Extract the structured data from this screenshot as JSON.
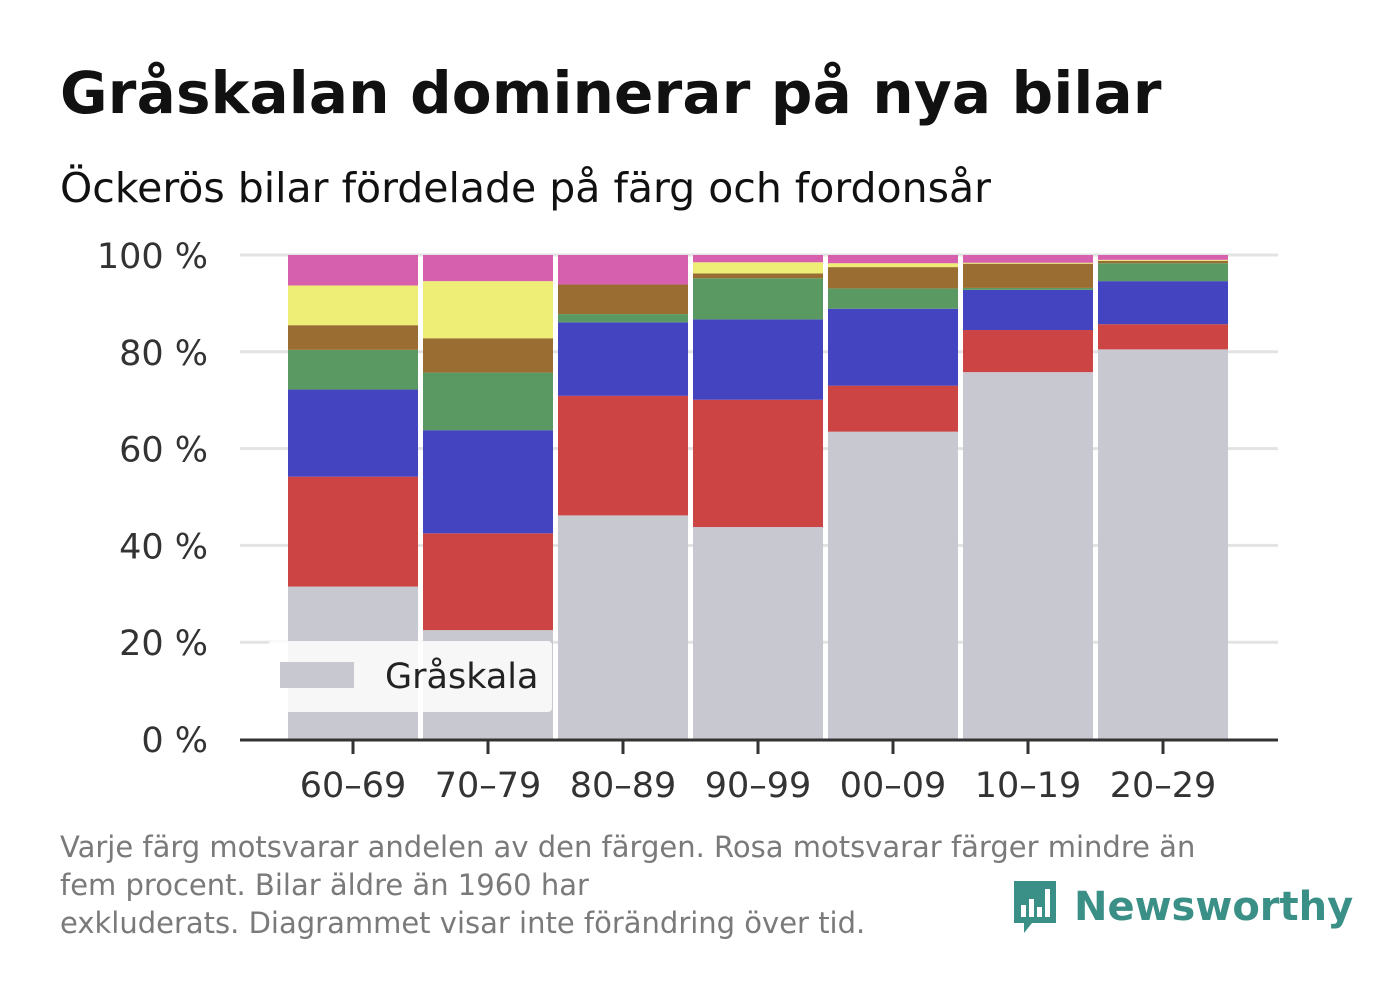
{
  "title": "Gråskalan dominerar på nya bilar",
  "subtitle": "Öckerös bilar fördelade på färg och fordonsår",
  "footnote": {
    "line1": "Varje färg motsvarar andelen av den färgen. Rosa motsvarar färger mindre än",
    "line2": "fem procent. Bilar äldre än 1960 har",
    "line3": "exkluderats. Diagrammet visar inte förändring över tid."
  },
  "brand": {
    "name": "Newsworthy",
    "color": "#3a8f86"
  },
  "legend": {
    "label": "Gråskala"
  },
  "chart_data": {
    "type": "bar",
    "stacked": true,
    "categories": [
      "60–69",
      "70–79",
      "80–89",
      "90–99",
      "00–09",
      "10–19",
      "20–29"
    ],
    "ylim": [
      0,
      100
    ],
    "yticks": [
      0,
      20,
      40,
      60,
      80,
      100
    ],
    "ytick_labels": [
      "0 %",
      "20 %",
      "40 %",
      "60 %",
      "80 %",
      "100 %"
    ],
    "grid": true,
    "legend_position": "bottom-left",
    "series": [
      {
        "name": "Gråskala",
        "color": "#c8c8d0",
        "values": [
          31.5,
          22.5,
          46.2,
          43.8,
          63.5,
          75.8,
          80.5
        ]
      },
      {
        "color": "#cc4444",
        "values": [
          22.7,
          20.0,
          24.7,
          26.3,
          9.5,
          8.7,
          5.2
        ]
      },
      {
        "color": "#4444c0",
        "values": [
          18.0,
          21.3,
          15.2,
          16.6,
          15.9,
          8.3,
          8.9
        ]
      },
      {
        "color": "#5a9a62",
        "values": [
          8.2,
          11.9,
          1.7,
          8.5,
          4.2,
          0.4,
          3.7
        ]
      },
      {
        "color": "#9a6e32",
        "values": [
          5.1,
          7.1,
          6.1,
          1.0,
          4.4,
          5.0,
          0.5
        ]
      },
      {
        "color": "#eeee77",
        "values": [
          8.2,
          11.8,
          0.0,
          2.3,
          0.8,
          0.2,
          0.2
        ]
      },
      {
        "color": "#d660ad",
        "values": [
          6.3,
          5.4,
          6.1,
          1.5,
          1.7,
          1.6,
          1.0
        ]
      }
    ]
  }
}
